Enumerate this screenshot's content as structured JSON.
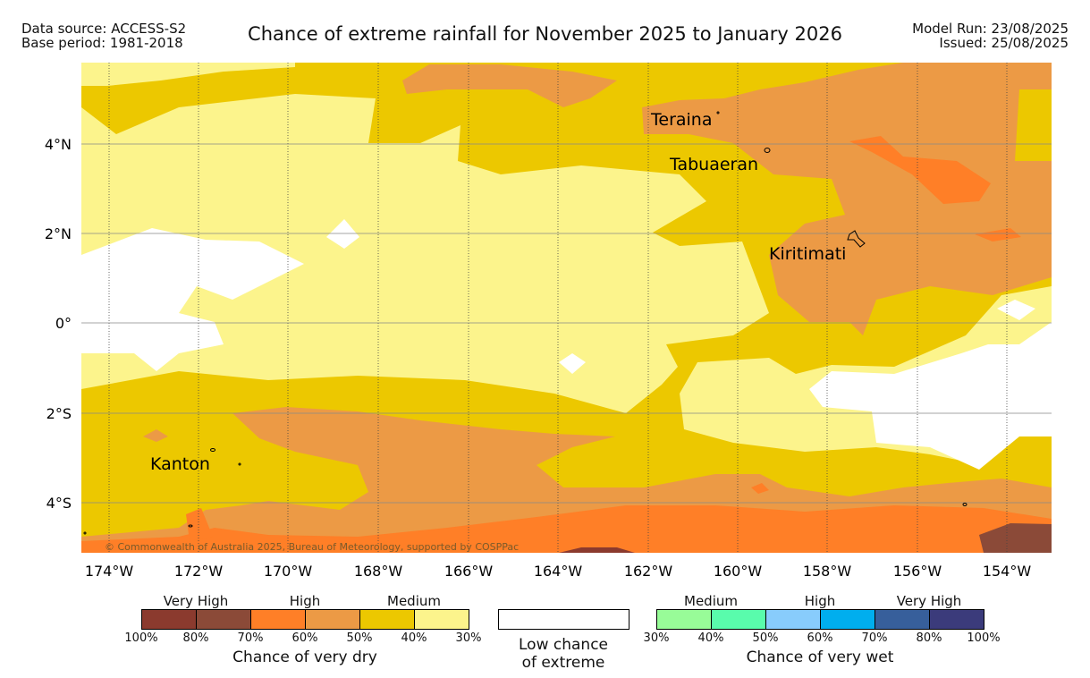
{
  "header": {
    "data_source": "Data source: ACCESS-S2",
    "base_period": "Base period: 1981-2018",
    "title": "Chance of extreme rainfall for November 2025 to January 2026",
    "model_run": "Model Run: 23/08/2025",
    "issued": "Issued: 25/08/2025"
  },
  "map": {
    "copyright": "© Commonwealth of Australia 2025, Bureau of Meteorology, supported by COSPPac",
    "lon_labels": [
      "174°W",
      "172°W",
      "170°W",
      "168°W",
      "166°W",
      "164°W",
      "162°W",
      "160°W",
      "158°W",
      "156°W",
      "154°W"
    ],
    "lat_labels": [
      "4°N",
      "2°N",
      "0°",
      "2°S",
      "4°S"
    ],
    "places": {
      "teraina": "Teraina",
      "tabuaeran": "Tabuaeran",
      "kiritimati": "Kiritimati",
      "kanton": "Kanton"
    },
    "colors": {
      "very_high_dry": "#8b3a2e",
      "very_high_dry_2": "#8b4a38",
      "high_dry": "#ff7f27",
      "high_dry_2": "#ec9a45",
      "medium_dry": "#ecc800",
      "medium_dry_2": "#fcf48c",
      "low": "#ffffff"
    }
  },
  "legend": {
    "dry": {
      "labels": [
        "Very High",
        "High",
        "Medium"
      ],
      "ticks": [
        "100%",
        "80%",
        "70%",
        "60%",
        "50%",
        "40%",
        "30%"
      ],
      "title": "Chance of very dry",
      "colors": [
        "#8b3a2e",
        "#8b4a38",
        "#ff7f27",
        "#ec9a45",
        "#ecc800",
        "#fcf48c"
      ]
    },
    "low": {
      "line1": "Low chance",
      "line2": "of extreme"
    },
    "wet": {
      "labels": [
        "Medium",
        "High",
        "Very High"
      ],
      "ticks": [
        "30%",
        "40%",
        "50%",
        "60%",
        "70%",
        "80%",
        "100%"
      ],
      "title": "Chance of very wet",
      "colors": [
        "#98fc98",
        "#59fcac",
        "#88ccfc",
        "#00aeee",
        "#375f9b",
        "#3b3b7b"
      ]
    }
  }
}
